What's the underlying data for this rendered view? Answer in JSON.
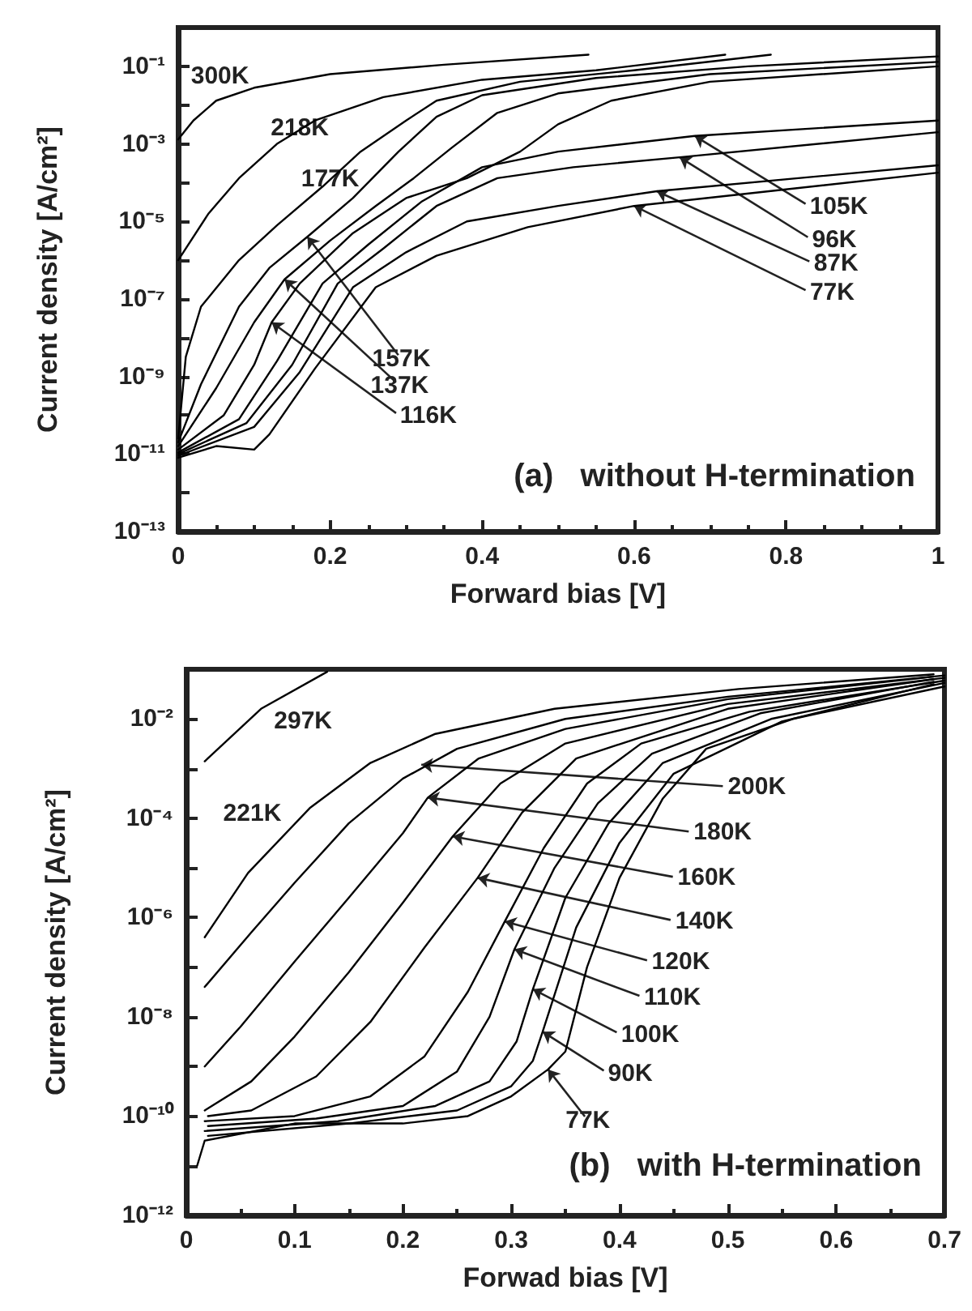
{
  "chart_data": [
    {
      "type": "line",
      "marker": "none",
      "xlabel": "Forward bias [V]",
      "ylabel": "Current density [A/cm²]",
      "log": "y",
      "xlim": [
        0,
        1
      ],
      "ylim": [
        1e-13,
        1
      ],
      "xticks": [
        0,
        0.2,
        0.4,
        0.6,
        0.8,
        1
      ],
      "yticks": [
        {
          "value": 1e-13,
          "label": "10⁻¹³"
        },
        {
          "value": 1e-12,
          "label": null
        },
        {
          "value": 1e-11,
          "label": "10⁻¹¹"
        },
        {
          "value": 1e-10,
          "label": null
        },
        {
          "value": 1e-09,
          "label": "10⁻⁹"
        },
        {
          "value": 1e-08,
          "label": null
        },
        {
          "value": 1e-07,
          "label": "10⁻⁷"
        },
        {
          "value": 1e-06,
          "label": null
        },
        {
          "value": 1e-05,
          "label": "10⁻⁵"
        },
        {
          "value": 0.0001,
          "label": null
        },
        {
          "value": 0.001,
          "label": "10⁻³"
        },
        {
          "value": 0.01,
          "label": null
        },
        {
          "value": 0.1,
          "label": "10⁻¹"
        },
        {
          "value": 1,
          "label": null
        }
      ],
      "series": [
        {
          "color": "#000000",
          "x": [
            0,
            0.02,
            0.05,
            0.1,
            0.2,
            0.35,
            0.54
          ],
          "values": [
            0.0013,
            0.004,
            0.013,
            0.028,
            0.063,
            0.11,
            0.2
          ]
        },
        {
          "color": "#000000",
          "x": [
            0,
            0.04,
            0.08,
            0.13,
            0.18,
            0.27,
            0.4,
            0.55,
            0.72
          ],
          "values": [
            1e-06,
            1.6e-05,
            0.00013,
            0.001,
            0.004,
            0.016,
            0.045,
            0.079,
            0.2
          ]
        },
        {
          "color": "#000000",
          "x": [
            0,
            0.01,
            0.03,
            0.08,
            0.13,
            0.19,
            0.24,
            0.3,
            0.34,
            0.45,
            0.6,
            0.78
          ],
          "values": [
            2.5e-11,
            3.2e-09,
            6.3e-08,
            1e-06,
            7.9e-06,
            7.9e-05,
            0.00063,
            0.004,
            0.013,
            0.04,
            0.079,
            0.2
          ]
        },
        {
          "color": "#000000",
          "x": [
            0,
            0.03,
            0.08,
            0.12,
            0.17,
            0.23,
            0.29,
            0.34,
            0.4,
            0.55,
            0.75,
            1
          ],
          "values": [
            2e-11,
            6.3e-10,
            6.3e-08,
            6.3e-07,
            4e-06,
            4e-05,
            0.00063,
            0.005,
            0.018,
            0.05,
            0.1,
            0.18
          ]
        },
        {
          "color": "#000000",
          "x": [
            0,
            0.05,
            0.1,
            0.14,
            0.2,
            0.26,
            0.31,
            0.36,
            0.42,
            0.5,
            0.7,
            1
          ],
          "values": [
            1.6e-11,
            5e-10,
            2.5e-08,
            3.2e-07,
            3.2e-06,
            2.5e-05,
            0.00013,
            0.00079,
            0.0063,
            0.02,
            0.063,
            0.13
          ]
        },
        {
          "color": "#000000",
          "x": [
            0,
            0.06,
            0.1,
            0.123,
            0.16,
            0.23,
            0.3,
            0.38,
            0.45,
            0.5,
            0.57,
            0.7,
            1
          ],
          "values": [
            1.3e-11,
            1e-10,
            2e-09,
            2.5e-08,
            2.5e-07,
            5e-06,
            4e-05,
            0.00013,
            0.00063,
            0.0032,
            0.013,
            0.04,
            0.1
          ]
        },
        {
          "color": "#000000",
          "x": [
            0,
            0.08,
            0.13,
            0.19,
            0.25,
            0.32,
            0.4,
            0.5,
            0.68,
            1
          ],
          "values": [
            1.1e-11,
            7.9e-11,
            2.5e-09,
            2.5e-07,
            2.5e-06,
            3.2e-05,
            0.00025,
            0.00063,
            0.0016,
            0.004
          ]
        },
        {
          "color": "#000000",
          "x": [
            0,
            0.09,
            0.15,
            0.21,
            0.27,
            0.34,
            0.42,
            0.52,
            0.66,
            1
          ],
          "values": [
            1e-11,
            6.3e-11,
            2e-09,
            2.5e-07,
            2e-06,
            2.5e-05,
            0.00013,
            0.00025,
            0.00045,
            0.002
          ]
        },
        {
          "color": "#000000",
          "x": [
            0,
            0.1,
            0.16,
            0.23,
            0.3,
            0.38,
            0.5,
            0.63,
            1
          ],
          "values": [
            9e-12,
            5e-11,
            1.3e-09,
            2e-07,
            1.6e-06,
            1e-05,
            2.5e-05,
            6e-05,
            0.00028
          ]
        },
        {
          "color": "#000000",
          "x": [
            0,
            0.05,
            0.1,
            0.12,
            0.18,
            0.26,
            0.34,
            0.46,
            0.6,
            1
          ],
          "values": [
            8e-12,
            1.6e-11,
            1.3e-11,
            3.2e-11,
            1.6e-09,
            2e-07,
            1.3e-06,
            7.1e-06,
            2.5e-05,
            0.00018
          ]
        }
      ],
      "annotations": [
        "300K",
        "218K",
        "177K",
        {
          "text": "105K",
          "x": 0.68,
          "y": 0.0016
        },
        {
          "text": "96K",
          "x": 0.66,
          "y": 0.00045
        },
        {
          "text": "87K",
          "x": 0.63,
          "y": 6e-05
        },
        {
          "text": "77K",
          "x": 0.6,
          "y": 2.5e-05
        },
        {
          "text": "157K",
          "x": 0.17,
          "y": 4e-06
        },
        {
          "text": "137K",
          "x": 0.14,
          "y": 3.2e-07
        },
        {
          "text": "116K",
          "x": 0.123,
          "y": 2.5e-08
        },
        "(a)   without H-termination"
      ]
    },
    {
      "type": "line",
      "marker": "none",
      "xlabel": "Forwad bias [V]",
      "ylabel": "Current density [A/cm²]",
      "log": "y",
      "xlim": [
        0,
        0.7
      ],
      "ylim": [
        1e-12,
        0.1
      ],
      "xticks": [
        0,
        0.1,
        0.2,
        0.3,
        0.4,
        0.5,
        0.6,
        0.7
      ],
      "yticks": [
        {
          "value": 1e-12,
          "label": "10⁻¹²"
        },
        {
          "value": 1e-11,
          "label": null
        },
        {
          "value": 1e-10,
          "label": "10⁻¹⁰"
        },
        {
          "value": 1e-09,
          "label": null
        },
        {
          "value": 1e-08,
          "label": "10⁻⁸"
        },
        {
          "value": 1e-07,
          "label": null
        },
        {
          "value": 1e-06,
          "label": "10⁻⁶"
        },
        {
          "value": 1e-05,
          "label": null
        },
        {
          "value": 0.0001,
          "label": "10⁻⁴"
        },
        {
          "value": 0.001,
          "label": null
        },
        {
          "value": 0.01,
          "label": "10⁻²"
        },
        {
          "value": 0.1,
          "label": null
        }
      ],
      "series": [
        {
          "color": "#000000",
          "x": [
            0.017,
            0.069,
            0.13
          ],
          "values": [
            0.0014,
            0.016,
            0.089
          ]
        },
        {
          "color": "#000000",
          "x": [
            0.017,
            0.057,
            0.114,
            0.17,
            0.23,
            0.34,
            0.51,
            0.69
          ],
          "values": [
            4e-07,
            7.9e-06,
            0.00016,
            0.0013,
            0.005,
            0.016,
            0.04,
            0.079
          ]
        },
        {
          "color": "#000000",
          "x": [
            0.017,
            0.06,
            0.1,
            0.15,
            0.2,
            0.25,
            0.35,
            0.5,
            0.7
          ],
          "values": [
            4e-08,
            5e-07,
            5e-06,
            7.9e-05,
            0.00063,
            0.0025,
            0.01,
            0.028,
            0.075
          ]
        },
        {
          "color": "#000000",
          "x": [
            0.017,
            0.05,
            0.1,
            0.15,
            0.2,
            0.223,
            0.27,
            0.35,
            0.5,
            0.69
          ],
          "values": [
            1e-09,
            6.3e-09,
            1.3e-07,
            2.5e-06,
            5e-05,
            0.00026,
            0.0016,
            0.0063,
            0.025,
            0.071
          ]
        },
        {
          "color": "#000000",
          "x": [
            0.017,
            0.06,
            0.1,
            0.15,
            0.2,
            0.246,
            0.29,
            0.35,
            0.5,
            0.7
          ],
          "values": [
            1.3e-10,
            5e-10,
            4e-09,
            7.9e-08,
            2e-06,
            4.3e-05,
            0.0005,
            0.0032,
            0.02,
            0.067
          ]
        },
        {
          "color": "#000000",
          "x": [
            0.02,
            0.06,
            0.12,
            0.17,
            0.22,
            0.269,
            0.31,
            0.36,
            0.5,
            0.69
          ],
          "values": [
            1e-10,
            1.3e-10,
            6.3e-10,
            7.9e-09,
            2.5e-07,
            6.3e-06,
            0.00013,
            0.0016,
            0.016,
            0.063
          ]
        },
        {
          "color": "#000000",
          "x": [
            0.017,
            0.1,
            0.17,
            0.22,
            0.26,
            0.294,
            0.33,
            0.37,
            0.42,
            0.52,
            0.7
          ],
          "values": [
            7.9e-11,
            1e-10,
            2.5e-10,
            1.6e-09,
            3.2e-08,
            8.3e-07,
            2.5e-05,
            0.0005,
            0.0032,
            0.014,
            0.059
          ]
        },
        {
          "color": "#000000",
          "x": [
            0.02,
            0.12,
            0.2,
            0.25,
            0.28,
            0.303,
            0.34,
            0.38,
            0.43,
            0.53,
            0.69
          ],
          "values": [
            6.3e-11,
            8.9e-11,
            1.6e-10,
            7.9e-10,
            1e-08,
            2.3e-07,
            1e-05,
            0.0002,
            0.002,
            0.013,
            0.056
          ]
        },
        {
          "color": "#000000",
          "x": [
            0.017,
            0.14,
            0.23,
            0.28,
            0.305,
            0.32,
            0.35,
            0.39,
            0.44,
            0.54,
            0.7
          ],
          "values": [
            5e-11,
            7.9e-11,
            1.6e-10,
            5e-10,
            3.2e-09,
            3.6e-08,
            2.5e-06,
            7.9e-05,
            0.0013,
            0.01,
            0.053
          ]
        },
        {
          "color": "#000000",
          "x": [
            0.02,
            0.15,
            0.25,
            0.3,
            0.32,
            0.329,
            0.36,
            0.4,
            0.45,
            0.55,
            0.69
          ],
          "values": [
            4e-11,
            7.1e-11,
            1.3e-10,
            4e-10,
            1.3e-09,
            5e-09,
            6.3e-07,
            3.2e-05,
            0.00079,
            0.0089,
            0.05
          ]
        },
        {
          "color": "#000000",
          "x": [
            0.01,
            0.017,
            0.1,
            0.2,
            0.26,
            0.3,
            0.334,
            0.35,
            0.37,
            0.4,
            0.44,
            0.48,
            0.56,
            0.7
          ],
          "values": [
            1e-11,
            3.2e-11,
            7.1e-11,
            7.1e-11,
            1e-10,
            2.5e-10,
            8.7e-10,
            2e-09,
            1e-07,
            6.3e-06,
            0.00025,
            0.0025,
            0.01,
            0.045
          ]
        }
      ],
      "annotations": [
        "297K",
        "221K",
        {
          "text": "200K",
          "x": 0.217,
          "y": 0.0012
        },
        {
          "text": "180K",
          "x": 0.223,
          "y": 0.00026
        },
        {
          "text": "160K",
          "x": 0.246,
          "y": 4.3e-05
        },
        {
          "text": "140K",
          "x": 0.269,
          "y": 6.3e-06
        },
        {
          "text": "120K",
          "x": 0.294,
          "y": 8.3e-07
        },
        {
          "text": "110K",
          "x": 0.303,
          "y": 2.3e-07
        },
        {
          "text": "100K",
          "x": 0.32,
          "y": 3.6e-08
        },
        {
          "text": "90K",
          "x": 0.329,
          "y": 5e-09
        },
        {
          "text": "77K",
          "x": 0.334,
          "y": 8.7e-10
        },
        "(b)   with H-termination"
      ]
    }
  ]
}
